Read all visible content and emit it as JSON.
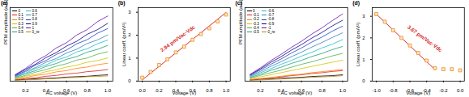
{
  "chart_data": [
    {
      "type": "line",
      "title": "(a)",
      "xlabel": "AC voltage (V)",
      "ylabel": "PFM amplitude (a.u.)",
      "x": [
        0.1,
        0.2,
        0.3,
        0.4,
        0.5,
        0.6,
        0.7,
        0.8,
        0.9,
        1.0
      ],
      "series": [
        {
          "name": "0",
          "color": "#000000",
          "values": [
            0.05,
            0.08,
            0.11,
            0.13,
            0.15,
            0.19,
            0.21,
            0.23,
            0.27,
            0.3
          ]
        },
        {
          "name": "0.1",
          "color": "#e41a1c",
          "values": [
            0.06,
            0.12,
            0.16,
            0.23,
            0.27,
            0.34,
            0.38,
            0.45,
            0.49,
            0.55
          ]
        },
        {
          "name": "0.2",
          "color": "#ff7f00",
          "values": [
            0.09,
            0.17,
            0.27,
            0.33,
            0.44,
            0.5,
            0.61,
            0.67,
            0.78,
            0.85
          ]
        },
        {
          "name": "0.3",
          "color": "#d4c000",
          "values": [
            0.11,
            0.23,
            0.32,
            0.45,
            0.54,
            0.67,
            0.76,
            0.9,
            0.98,
            1.1
          ]
        },
        {
          "name": "0.4",
          "color": "#4daf4a",
          "values": [
            0.14,
            0.27,
            0.43,
            0.55,
            0.71,
            0.83,
            1.0,
            1.1,
            1.28,
            1.4
          ]
        },
        {
          "name": "0.5",
          "color": "#1b9e77",
          "values": [
            0.17,
            0.35,
            0.5,
            0.7,
            0.84,
            1.04,
            1.17,
            1.38,
            1.51,
            1.7
          ]
        },
        {
          "name": "0.6",
          "color": "#17becf",
          "values": [
            0.2,
            0.38,
            0.6,
            0.77,
            1.0,
            1.15,
            1.39,
            1.54,
            1.78,
            1.95
          ]
        },
        {
          "name": "0.7",
          "color": "#377eb8",
          "values": [
            0.22,
            0.45,
            0.65,
            0.9,
            1.08,
            1.34,
            1.52,
            1.79,
            1.96,
            2.2
          ]
        },
        {
          "name": "0.8",
          "color": "#1f3fbf",
          "values": [
            0.25,
            0.49,
            0.77,
            0.98,
            1.27,
            1.48,
            1.78,
            1.97,
            2.28,
            2.5
          ]
        },
        {
          "name": "0.9",
          "color": "#000080",
          "values": [
            0.28,
            0.56,
            0.81,
            1.12,
            1.36,
            1.67,
            1.9,
            2.23,
            2.45,
            2.75
          ]
        },
        {
          "name": "1",
          "color": "#6a0dad",
          "values": [
            0.31,
            0.6,
            0.95,
            1.22,
            1.58,
            1.83,
            2.2,
            2.45,
            2.83,
            3.1
          ]
        },
        {
          "name": "0_re",
          "color": "#b8860b",
          "values": [
            0.03,
            0.06,
            0.07,
            0.11,
            0.12,
            0.16,
            0.17,
            0.21,
            0.22,
            0.25
          ]
        }
      ],
      "xlim": [
        0.05,
        1.05
      ],
      "xticks": [
        0.2,
        0.4,
        0.6,
        0.8,
        {
          "value": 1.0,
          "label": "1.0"
        }
      ],
      "ylim": [
        0,
        3.5
      ],
      "yticks": [],
      "tick_labels": "x",
      "legend": "top-left"
    },
    {
      "type": "scatter",
      "title": "(b)",
      "xlabel": "Voltage (V)",
      "ylabel": "Linear coeff. (pm/V²)",
      "x": [
        0.0,
        0.1,
        0.2,
        0.3,
        0.4,
        0.5,
        0.6,
        0.7,
        0.8,
        0.9,
        1.0
      ],
      "values": [
        0.15,
        0.4,
        0.7,
        0.95,
        1.25,
        1.5,
        1.8,
        2.05,
        2.3,
        2.6,
        2.9
      ],
      "color": "#e8902a",
      "marker": "square",
      "fit": {
        "x": [
          0.0,
          1.0
        ],
        "values": [
          0.05,
          2.99
        ],
        "color": "#d62728"
      },
      "annotations": [
        "2.94 pm/Vac·Vdc"
      ],
      "xlim": [
        -0.05,
        1.05
      ],
      "xticks": [
        {
          "value": 0.0,
          "label": "0.0"
        },
        0.2,
        0.4,
        0.6,
        0.8,
        {
          "value": 1.0,
          "label": "1.0"
        }
      ],
      "ylim": [
        0,
        3.2
      ],
      "yticks": [
        0,
        1,
        2,
        3
      ]
    },
    {
      "type": "line",
      "title": "(c)",
      "xlabel": "AC voltage (V)",
      "ylabel": "PFM amplitude (a.u.)",
      "x": [
        0.1,
        0.2,
        0.3,
        0.4,
        0.5,
        0.6,
        0.7,
        0.8,
        0.9,
        1.0
      ],
      "series": [
        {
          "name": "0",
          "color": "#000000",
          "values": [
            0.05,
            0.09,
            0.1,
            0.14,
            0.16,
            0.18,
            0.22,
            0.24,
            0.26,
            0.3
          ]
        },
        {
          "name": "-0.1",
          "color": "#e41a1c",
          "values": [
            0.06,
            0.1,
            0.15,
            0.2,
            0.26,
            0.3,
            0.36,
            0.4,
            0.46,
            0.5
          ]
        },
        {
          "name": "-0.2",
          "color": "#ff7f00",
          "values": [
            0.06,
            0.12,
            0.17,
            0.23,
            0.29,
            0.33,
            0.4,
            0.45,
            0.5,
            0.56
          ]
        },
        {
          "name": "-0.3",
          "color": "#d4c000",
          "values": [
            0.1,
            0.2,
            0.3,
            0.4,
            0.5,
            0.6,
            0.7,
            0.8,
            0.9,
            1.0
          ]
        },
        {
          "name": "-0.4",
          "color": "#4daf4a",
          "values": [
            0.13,
            0.27,
            0.4,
            0.52,
            0.66,
            0.8,
            0.92,
            1.06,
            1.2,
            1.32
          ]
        },
        {
          "name": "-0.5",
          "color": "#1b9e77",
          "values": [
            0.17,
            0.33,
            0.51,
            0.66,
            0.84,
            0.99,
            1.17,
            1.32,
            1.5,
            1.65
          ]
        },
        {
          "name": "-0.6",
          "color": "#17becf",
          "values": [
            0.2,
            0.4,
            0.59,
            0.8,
            0.98,
            1.19,
            1.37,
            1.58,
            1.76,
            1.98
          ]
        },
        {
          "name": "-0.7",
          "color": "#377eb8",
          "values": [
            0.23,
            0.46,
            0.7,
            0.92,
            1.16,
            1.38,
            1.62,
            1.84,
            2.08,
            2.3
          ]
        },
        {
          "name": "-0.8",
          "color": "#1f3fbf",
          "values": [
            0.27,
            0.53,
            0.8,
            1.05,
            1.33,
            1.58,
            1.86,
            2.1,
            2.38,
            2.62
          ]
        },
        {
          "name": "-0.9",
          "color": "#000080",
          "values": [
            0.3,
            0.58,
            0.89,
            1.16,
            1.47,
            1.74,
            2.05,
            2.32,
            2.63,
            2.9
          ]
        },
        {
          "name": "-1",
          "color": "#6a0dad",
          "values": [
            0.32,
            0.63,
            0.97,
            1.27,
            1.6,
            1.9,
            2.24,
            2.54,
            2.88,
            3.2
          ]
        },
        {
          "name": "0_re",
          "color": "#b8860b",
          "values": [
            0.03,
            0.05,
            0.08,
            0.1,
            0.12,
            0.15,
            0.18,
            0.2,
            0.22,
            0.26
          ]
        }
      ],
      "xlim": [
        0.05,
        1.05
      ],
      "xticks": [
        0.2,
        0.4,
        0.6,
        0.8,
        {
          "value": 1.0,
          "label": "1.0"
        }
      ],
      "ylim": [
        0,
        3.5
      ],
      "yticks": [],
      "tick_labels": "x",
      "legend": "top-left"
    },
    {
      "type": "scatter",
      "title": "(d)",
      "xlabel": "Voltage (V)",
      "ylabel": "Linear coeff. (pm/V²)",
      "x": [
        -1.0,
        -0.9,
        -0.8,
        -0.7,
        -0.6,
        -0.5,
        -0.4,
        -0.3,
        -0.2,
        -0.1,
        0.0
      ],
      "values": [
        3.1,
        2.75,
        2.35,
        2.0,
        1.65,
        1.3,
        0.95,
        0.6,
        0.55,
        0.55,
        0.5
      ],
      "color": "#e8902a",
      "marker": "square",
      "fit": {
        "x": [
          -1.0,
          -0.3
        ],
        "values": [
          3.1,
          0.53
        ],
        "color": "#d62728"
      },
      "annotations": [
        "3.67 pm/Vac·Vdc"
      ],
      "xlim": [
        -1.05,
        0.05
      ],
      "xticks": [
        {
          "value": -1.0,
          "label": "-1.0"
        },
        -0.8,
        -0.6,
        -0.4,
        -0.2,
        {
          "value": 0.0,
          "label": "0.0"
        }
      ],
      "ylim": [
        0,
        3.4
      ],
      "yticks": [
        0,
        1,
        2,
        3
      ]
    }
  ]
}
